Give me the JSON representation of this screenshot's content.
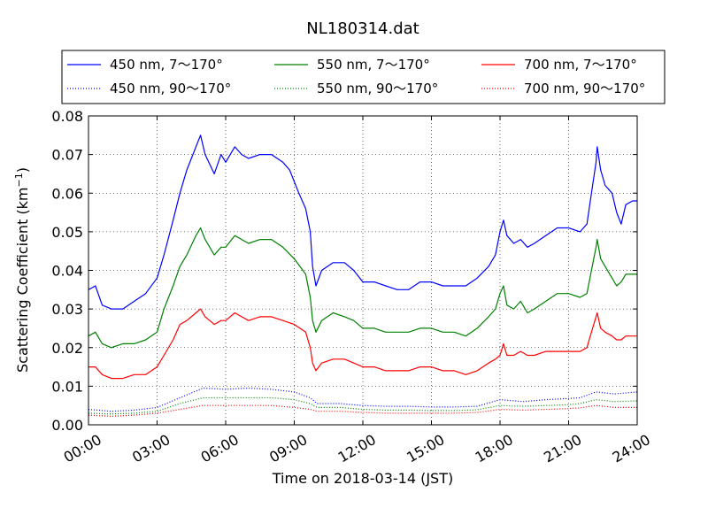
{
  "chart_data": {
    "type": "line",
    "title": "NL180314.dat",
    "xlabel": "Time on 2018-03-14 (JST)",
    "ylabel_main": "Scattering Coefficient (km",
    "ylabel_sup": "−1",
    "ylabel_close": ")",
    "xlim": [
      0,
      24
    ],
    "ylim": [
      0,
      0.08
    ],
    "grid": true,
    "legend_position": "top, outside plot",
    "xticks": [
      {
        "v": 0,
        "label": "00:00"
      },
      {
        "v": 3,
        "label": "03:00"
      },
      {
        "v": 6,
        "label": "06:00"
      },
      {
        "v": 9,
        "label": "09:00"
      },
      {
        "v": 12,
        "label": "12:00"
      },
      {
        "v": 15,
        "label": "15:00"
      },
      {
        "v": 18,
        "label": "18:00"
      },
      {
        "v": 21,
        "label": "21:00"
      },
      {
        "v": 24,
        "label": "24:00"
      }
    ],
    "yticks": [
      {
        "v": 0,
        "label": "0.00"
      },
      {
        "v": 0.01,
        "label": "0.01"
      },
      {
        "v": 0.02,
        "label": "0.02"
      },
      {
        "v": 0.03,
        "label": "0.03"
      },
      {
        "v": 0.04,
        "label": "0.04"
      },
      {
        "v": 0.05,
        "label": "0.05"
      },
      {
        "v": 0.06,
        "label": "0.06"
      },
      {
        "v": 0.07,
        "label": "0.07"
      },
      {
        "v": 0.08,
        "label": "0.08"
      }
    ],
    "series": [
      {
        "name": "450 nm, 7～170°",
        "color": "#0000ff",
        "style": "solid",
        "points": [
          [
            0,
            0.035
          ],
          [
            0.3,
            0.036
          ],
          [
            0.6,
            0.031
          ],
          [
            1.0,
            0.03
          ],
          [
            1.5,
            0.03
          ],
          [
            2.0,
            0.032
          ],
          [
            2.5,
            0.034
          ],
          [
            3.0,
            0.038
          ],
          [
            3.3,
            0.044
          ],
          [
            3.7,
            0.053
          ],
          [
            4.0,
            0.06
          ],
          [
            4.3,
            0.066
          ],
          [
            4.7,
            0.072
          ],
          [
            4.9,
            0.075
          ],
          [
            5.1,
            0.07
          ],
          [
            5.5,
            0.065
          ],
          [
            5.8,
            0.07
          ],
          [
            6.0,
            0.068
          ],
          [
            6.4,
            0.072
          ],
          [
            6.7,
            0.07
          ],
          [
            7.0,
            0.069
          ],
          [
            7.5,
            0.07
          ],
          [
            8.0,
            0.07
          ],
          [
            8.5,
            0.068
          ],
          [
            8.8,
            0.066
          ],
          [
            9.2,
            0.06
          ],
          [
            9.5,
            0.056
          ],
          [
            9.7,
            0.05
          ],
          [
            9.8,
            0.041
          ],
          [
            9.95,
            0.036
          ],
          [
            10.2,
            0.04
          ],
          [
            10.7,
            0.042
          ],
          [
            11.2,
            0.042
          ],
          [
            11.6,
            0.04
          ],
          [
            12.0,
            0.037
          ],
          [
            12.5,
            0.037
          ],
          [
            13.0,
            0.036
          ],
          [
            13.5,
            0.035
          ],
          [
            14.0,
            0.035
          ],
          [
            14.5,
            0.037
          ],
          [
            15.0,
            0.037
          ],
          [
            15.5,
            0.036
          ],
          [
            16.0,
            0.036
          ],
          [
            16.5,
            0.036
          ],
          [
            17.0,
            0.038
          ],
          [
            17.5,
            0.041
          ],
          [
            17.8,
            0.044
          ],
          [
            18.0,
            0.05
          ],
          [
            18.15,
            0.053
          ],
          [
            18.3,
            0.049
          ],
          [
            18.6,
            0.047
          ],
          [
            18.9,
            0.048
          ],
          [
            19.2,
            0.046
          ],
          [
            19.5,
            0.047
          ],
          [
            20.0,
            0.049
          ],
          [
            20.5,
            0.051
          ],
          [
            21.0,
            0.051
          ],
          [
            21.5,
            0.05
          ],
          [
            21.8,
            0.052
          ],
          [
            22.0,
            0.06
          ],
          [
            22.2,
            0.068
          ],
          [
            22.25,
            0.072
          ],
          [
            22.4,
            0.066
          ],
          [
            22.6,
            0.062
          ],
          [
            22.9,
            0.06
          ],
          [
            23.1,
            0.055
          ],
          [
            23.3,
            0.052
          ],
          [
            23.5,
            0.057
          ],
          [
            23.8,
            0.058
          ],
          [
            24.0,
            0.058
          ]
        ]
      },
      {
        "name": "450 nm, 90～170°",
        "color": "#0000ff",
        "style": "dotted",
        "points": [
          [
            0,
            0.004
          ],
          [
            1.0,
            0.0035
          ],
          [
            2.0,
            0.0038
          ],
          [
            3.0,
            0.0045
          ],
          [
            4.0,
            0.007
          ],
          [
            5.0,
            0.0095
          ],
          [
            6.0,
            0.0092
          ],
          [
            7.0,
            0.0095
          ],
          [
            8.0,
            0.0092
          ],
          [
            9.0,
            0.0085
          ],
          [
            9.7,
            0.007
          ],
          [
            10.0,
            0.0055
          ],
          [
            11.0,
            0.0055
          ],
          [
            12.0,
            0.005
          ],
          [
            13.0,
            0.0048
          ],
          [
            14.0,
            0.0048
          ],
          [
            15.0,
            0.0046
          ],
          [
            16.0,
            0.0046
          ],
          [
            17.0,
            0.0048
          ],
          [
            18.0,
            0.0065
          ],
          [
            19.0,
            0.006
          ],
          [
            20.0,
            0.0065
          ],
          [
            21.0,
            0.0068
          ],
          [
            21.5,
            0.007
          ],
          [
            22.2,
            0.0085
          ],
          [
            23.0,
            0.008
          ],
          [
            24.0,
            0.0085
          ]
        ]
      },
      {
        "name": "550 nm, 7～170°",
        "color": "#008000",
        "style": "solid",
        "points": [
          [
            0,
            0.023
          ],
          [
            0.3,
            0.024
          ],
          [
            0.6,
            0.021
          ],
          [
            1.0,
            0.02
          ],
          [
            1.5,
            0.021
          ],
          [
            2.0,
            0.021
          ],
          [
            2.5,
            0.022
          ],
          [
            3.0,
            0.024
          ],
          [
            3.3,
            0.03
          ],
          [
            3.7,
            0.036
          ],
          [
            4.0,
            0.041
          ],
          [
            4.3,
            0.044
          ],
          [
            4.7,
            0.049
          ],
          [
            4.9,
            0.051
          ],
          [
            5.1,
            0.048
          ],
          [
            5.5,
            0.044
          ],
          [
            5.8,
            0.046
          ],
          [
            6.0,
            0.046
          ],
          [
            6.4,
            0.049
          ],
          [
            6.7,
            0.048
          ],
          [
            7.0,
            0.047
          ],
          [
            7.5,
            0.048
          ],
          [
            8.0,
            0.048
          ],
          [
            8.5,
            0.046
          ],
          [
            9.0,
            0.043
          ],
          [
            9.5,
            0.039
          ],
          [
            9.7,
            0.033
          ],
          [
            9.8,
            0.027
          ],
          [
            9.95,
            0.024
          ],
          [
            10.2,
            0.027
          ],
          [
            10.7,
            0.029
          ],
          [
            11.2,
            0.028
          ],
          [
            11.6,
            0.027
          ],
          [
            12.0,
            0.025
          ],
          [
            12.5,
            0.025
          ],
          [
            13.0,
            0.024
          ],
          [
            13.5,
            0.024
          ],
          [
            14.0,
            0.024
          ],
          [
            14.5,
            0.025
          ],
          [
            15.0,
            0.025
          ],
          [
            15.5,
            0.024
          ],
          [
            16.0,
            0.024
          ],
          [
            16.5,
            0.023
          ],
          [
            17.0,
            0.025
          ],
          [
            17.5,
            0.028
          ],
          [
            17.8,
            0.03
          ],
          [
            18.0,
            0.034
          ],
          [
            18.15,
            0.036
          ],
          [
            18.3,
            0.031
          ],
          [
            18.6,
            0.03
          ],
          [
            18.9,
            0.032
          ],
          [
            19.2,
            0.029
          ],
          [
            19.5,
            0.03
          ],
          [
            20.0,
            0.032
          ],
          [
            20.5,
            0.034
          ],
          [
            21.0,
            0.034
          ],
          [
            21.5,
            0.033
          ],
          [
            21.8,
            0.034
          ],
          [
            22.0,
            0.04
          ],
          [
            22.2,
            0.046
          ],
          [
            22.25,
            0.048
          ],
          [
            22.4,
            0.043
          ],
          [
            22.6,
            0.041
          ],
          [
            22.9,
            0.038
          ],
          [
            23.1,
            0.036
          ],
          [
            23.3,
            0.037
          ],
          [
            23.5,
            0.039
          ],
          [
            23.8,
            0.039
          ],
          [
            24.0,
            0.039
          ]
        ]
      },
      {
        "name": "550 nm, 90～170°",
        "color": "#008000",
        "style": "dotted",
        "points": [
          [
            0,
            0.003
          ],
          [
            1.0,
            0.0028
          ],
          [
            2.0,
            0.003
          ],
          [
            3.0,
            0.0035
          ],
          [
            4.0,
            0.0055
          ],
          [
            5.0,
            0.007
          ],
          [
            6.0,
            0.007
          ],
          [
            7.0,
            0.007
          ],
          [
            8.0,
            0.007
          ],
          [
            9.0,
            0.0065
          ],
          [
            9.7,
            0.0055
          ],
          [
            10.0,
            0.0045
          ],
          [
            11.0,
            0.0045
          ],
          [
            12.0,
            0.004
          ],
          [
            13.0,
            0.0038
          ],
          [
            14.0,
            0.0038
          ],
          [
            15.0,
            0.0037
          ],
          [
            16.0,
            0.0037
          ],
          [
            17.0,
            0.0039
          ],
          [
            18.0,
            0.005
          ],
          [
            19.0,
            0.0048
          ],
          [
            20.0,
            0.005
          ],
          [
            21.0,
            0.0052
          ],
          [
            21.5,
            0.0055
          ],
          [
            22.2,
            0.0065
          ],
          [
            23.0,
            0.006
          ],
          [
            24.0,
            0.0062
          ]
        ]
      },
      {
        "name": "700 nm, 7～170°",
        "color": "#ff0000",
        "style": "solid",
        "points": [
          [
            0,
            0.015
          ],
          [
            0.3,
            0.015
          ],
          [
            0.6,
            0.013
          ],
          [
            1.0,
            0.012
          ],
          [
            1.5,
            0.012
          ],
          [
            2.0,
            0.013
          ],
          [
            2.5,
            0.013
          ],
          [
            3.0,
            0.015
          ],
          [
            3.3,
            0.018
          ],
          [
            3.7,
            0.022
          ],
          [
            4.0,
            0.026
          ],
          [
            4.3,
            0.027
          ],
          [
            4.7,
            0.029
          ],
          [
            4.9,
            0.03
          ],
          [
            5.1,
            0.028
          ],
          [
            5.5,
            0.026
          ],
          [
            5.8,
            0.027
          ],
          [
            6.0,
            0.027
          ],
          [
            6.4,
            0.029
          ],
          [
            6.7,
            0.028
          ],
          [
            7.0,
            0.027
          ],
          [
            7.5,
            0.028
          ],
          [
            8.0,
            0.028
          ],
          [
            8.5,
            0.027
          ],
          [
            9.0,
            0.026
          ],
          [
            9.5,
            0.024
          ],
          [
            9.7,
            0.02
          ],
          [
            9.8,
            0.016
          ],
          [
            9.95,
            0.014
          ],
          [
            10.2,
            0.016
          ],
          [
            10.7,
            0.017
          ],
          [
            11.2,
            0.017
          ],
          [
            11.6,
            0.016
          ],
          [
            12.0,
            0.015
          ],
          [
            12.5,
            0.015
          ],
          [
            13.0,
            0.014
          ],
          [
            13.5,
            0.014
          ],
          [
            14.0,
            0.014
          ],
          [
            14.5,
            0.015
          ],
          [
            15.0,
            0.015
          ],
          [
            15.5,
            0.014
          ],
          [
            16.0,
            0.014
          ],
          [
            16.5,
            0.013
          ],
          [
            17.0,
            0.014
          ],
          [
            17.5,
            0.016
          ],
          [
            17.8,
            0.017
          ],
          [
            18.0,
            0.018
          ],
          [
            18.15,
            0.021
          ],
          [
            18.3,
            0.018
          ],
          [
            18.6,
            0.018
          ],
          [
            18.9,
            0.019
          ],
          [
            19.2,
            0.018
          ],
          [
            19.5,
            0.018
          ],
          [
            20.0,
            0.019
          ],
          [
            20.5,
            0.019
          ],
          [
            21.0,
            0.019
          ],
          [
            21.5,
            0.019
          ],
          [
            21.8,
            0.02
          ],
          [
            22.0,
            0.024
          ],
          [
            22.2,
            0.028
          ],
          [
            22.25,
            0.029
          ],
          [
            22.4,
            0.025
          ],
          [
            22.6,
            0.024
          ],
          [
            22.9,
            0.023
          ],
          [
            23.1,
            0.022
          ],
          [
            23.3,
            0.022
          ],
          [
            23.5,
            0.023
          ],
          [
            23.8,
            0.023
          ],
          [
            24.0,
            0.023
          ]
        ]
      },
      {
        "name": "700 nm, 90～170°",
        "color": "#ff0000",
        "style": "dotted",
        "points": [
          [
            0,
            0.0025
          ],
          [
            1.0,
            0.0022
          ],
          [
            2.0,
            0.0025
          ],
          [
            3.0,
            0.003
          ],
          [
            4.0,
            0.004
          ],
          [
            5.0,
            0.005
          ],
          [
            6.0,
            0.005
          ],
          [
            7.0,
            0.005
          ],
          [
            8.0,
            0.005
          ],
          [
            9.0,
            0.0045
          ],
          [
            9.7,
            0.004
          ],
          [
            10.0,
            0.0035
          ],
          [
            11.0,
            0.0035
          ],
          [
            12.0,
            0.0032
          ],
          [
            13.0,
            0.003
          ],
          [
            14.0,
            0.003
          ],
          [
            15.0,
            0.003
          ],
          [
            16.0,
            0.003
          ],
          [
            17.0,
            0.0032
          ],
          [
            18.0,
            0.004
          ],
          [
            19.0,
            0.0038
          ],
          [
            20.0,
            0.004
          ],
          [
            21.0,
            0.0042
          ],
          [
            21.5,
            0.0044
          ],
          [
            22.2,
            0.005
          ],
          [
            23.0,
            0.0045
          ],
          [
            24.0,
            0.0045
          ]
        ]
      }
    ]
  }
}
